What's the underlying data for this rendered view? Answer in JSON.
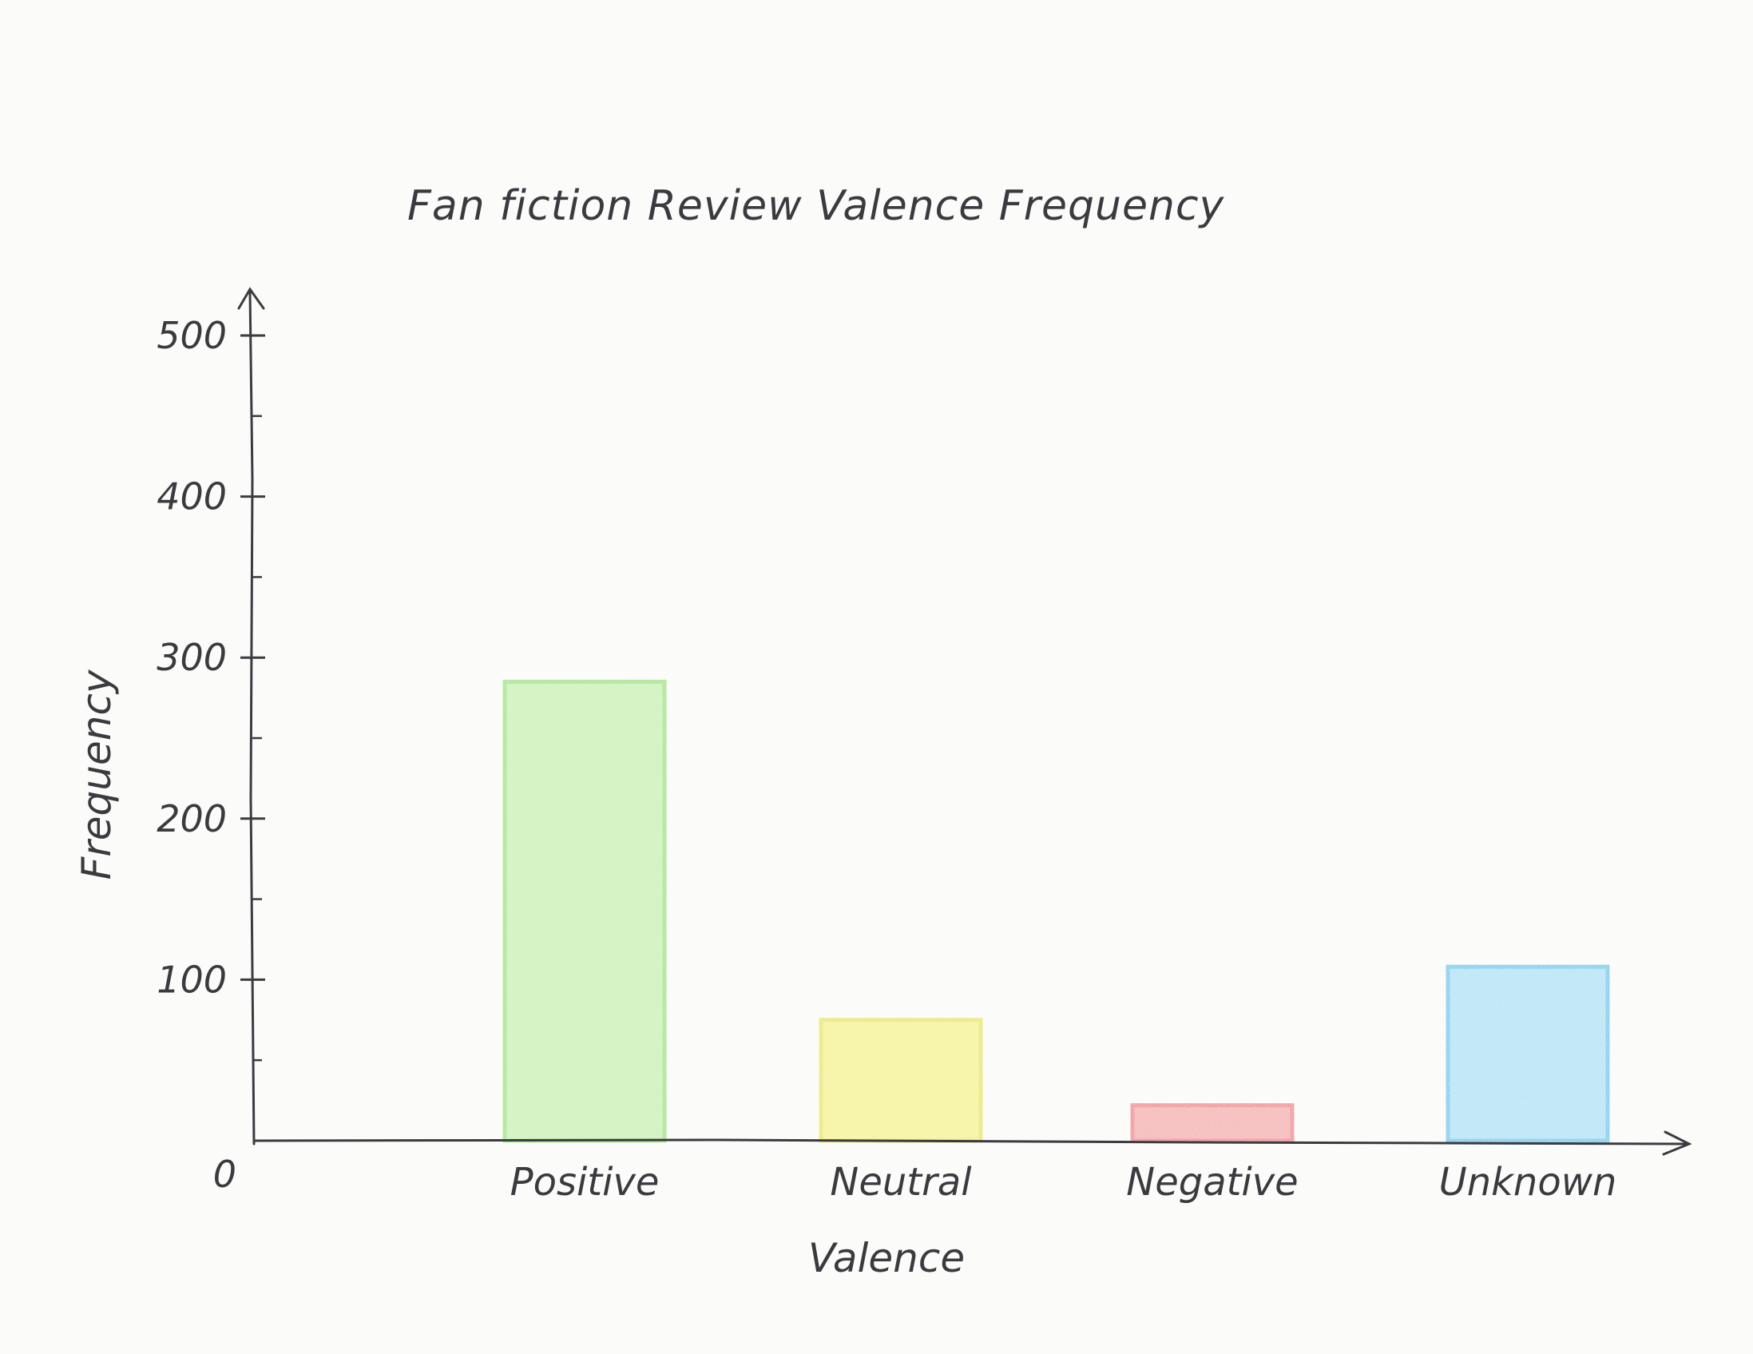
{
  "chart_data": {
    "type": "bar",
    "title": "Fan fiction Review Valence Frequency",
    "xlabel": "Valence",
    "ylabel": "Frequency",
    "categories": [
      "Positive",
      "Neutral",
      "Negative",
      "Unknown"
    ],
    "values": [
      285,
      75,
      22,
      108
    ],
    "colors": [
      "#b6ec94",
      "#f3ef4f",
      "#f28e8e",
      "#8fd9f3"
    ],
    "edge_colors": [
      "#8fe06a",
      "#e8e22a",
      "#ef6f74",
      "#4cc3ec"
    ],
    "ylim": [
      0,
      500
    ],
    "yticks": [
      0,
      100,
      200,
      300,
      400,
      500
    ],
    "grid": false,
    "legend": "none"
  }
}
